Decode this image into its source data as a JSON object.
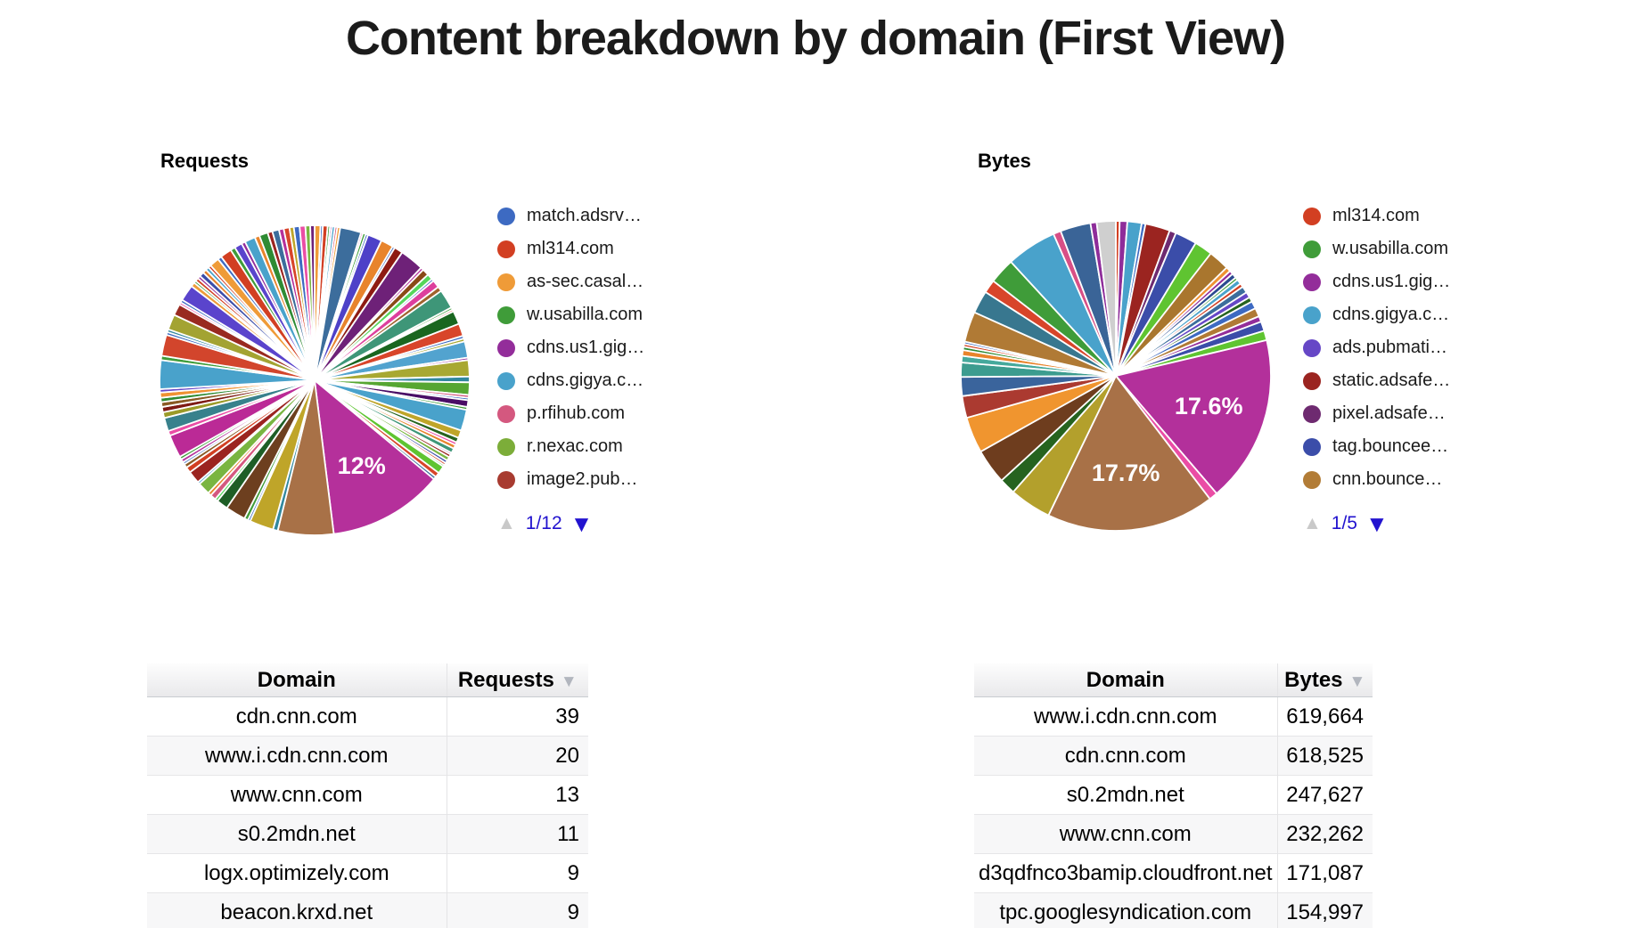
{
  "page_title": "Content breakdown by domain (First View)",
  "icons": {
    "legend_page_up": "▲",
    "legend_page_down": "▼",
    "sort_desc": "▼"
  },
  "colors": {
    "pagination_active": "#2213cf",
    "pagination_disabled": "#c9c9c9",
    "sort_icon": "#b2b6be",
    "label_text": "#ffffff"
  },
  "charts": [
    {
      "title": "Requests",
      "pagination": "1/12",
      "legend": [
        {
          "label": "match.adsrv…",
          "color": "#3d6ac2"
        },
        {
          "label": "ml314.com",
          "color": "#d23f22"
        },
        {
          "label": "as-sec.casal…",
          "color": "#ef9b38"
        },
        {
          "label": "w.usabilla.com",
          "color": "#3f9c39"
        },
        {
          "label": "cdns.us1.gig…",
          "color": "#932d9a"
        },
        {
          "label": "cdns.gigya.c…",
          "color": "#49a2cb"
        },
        {
          "label": "p.rfihub.com",
          "color": "#d4587f"
        },
        {
          "label": "r.nexac.com",
          "color": "#7cad39"
        },
        {
          "label": "image2.pub…",
          "color": "#a83b30"
        }
      ]
    },
    {
      "title": "Bytes",
      "pagination": "1/5",
      "legend": [
        {
          "label": "ml314.com",
          "color": "#d23f22"
        },
        {
          "label": "w.usabilla.com",
          "color": "#3f9c39"
        },
        {
          "label": "cdns.us1.gig…",
          "color": "#932d9a"
        },
        {
          "label": "cdns.gigya.c…",
          "color": "#49a2cb"
        },
        {
          "label": "ads.pubmati…",
          "color": "#6647c6"
        },
        {
          "label": "static.adsafe…",
          "color": "#9b2420"
        },
        {
          "label": "pixel.adsafe…",
          "color": "#6e2a70"
        },
        {
          "label": "tag.bouncee…",
          "color": "#3b4da9"
        },
        {
          "label": "cnn.bounce…",
          "color": "#b27c36"
        }
      ]
    }
  ],
  "chart_data": [
    {
      "type": "pie",
      "name": "requests_by_domain",
      "title": "Requests",
      "value_unit": "percent_of_total_requests",
      "data_labels_shown": [
        "12%"
      ],
      "legend_position": "right",
      "slices": [
        [
          0.6,
          "#ef9b38"
        ],
        [
          0.25,
          "#3d6ac2"
        ],
        [
          0.5,
          "#d23f22"
        ],
        [
          0.25,
          "#3f9c39"
        ],
        [
          0.2,
          "#932d9a"
        ],
        [
          0.3,
          "#49a2cb"
        ],
        [
          0.25,
          "#d4587f"
        ],
        [
          0.3,
          "#ef9b38"
        ],
        [
          2.2,
          "#3c6d9c"
        ],
        [
          0.2,
          "#ea4da5"
        ],
        [
          0.3,
          "#3f9c39"
        ],
        [
          0.25,
          "#3d6ac2"
        ],
        [
          1.5,
          "#4e41c8"
        ],
        [
          1.3,
          "#e8842c"
        ],
        [
          0.25,
          "#3d6ac2"
        ],
        [
          0.9,
          "#8e1b13"
        ],
        [
          2.5,
          "#6e2178"
        ],
        [
          0.3,
          "#b5309b"
        ],
        [
          0.7,
          "#8a4a17"
        ],
        [
          0.6,
          "#55d65a"
        ],
        [
          0.25,
          "#3d6ac2"
        ],
        [
          0.8,
          "#dd3f9d"
        ],
        [
          0.5,
          "#a0622d"
        ],
        [
          2.0,
          "#3e9678"
        ],
        [
          0.25,
          "#3f9c39"
        ],
        [
          0.2,
          "#d23f22"
        ],
        [
          1.4,
          "#1a6620"
        ],
        [
          1.3,
          "#d8452a"
        ],
        [
          0.3,
          "#3d6ac2"
        ],
        [
          0.3,
          "#a8a832"
        ],
        [
          1.7,
          "#52a3cf"
        ],
        [
          0.25,
          "#932d9a"
        ],
        [
          1.7,
          "#a8a832"
        ],
        [
          0.6,
          "#31889e"
        ],
        [
          1.3,
          "#56a632"
        ],
        [
          0.3,
          "#d4587f"
        ],
        [
          0.25,
          "#3d6ac2"
        ],
        [
          0.7,
          "#4a0e66"
        ],
        [
          0.3,
          "#3f9c39"
        ],
        [
          2.2,
          "#49a2cb"
        ],
        [
          0.8,
          "#bfa529"
        ],
        [
          0.5,
          "#26631f"
        ],
        [
          0.3,
          "#ea4da5"
        ],
        [
          0.4,
          "#e8842c"
        ],
        [
          0.5,
          "#3e9678"
        ],
        [
          0.2,
          "#932d9a"
        ],
        [
          0.3,
          "#9b2420"
        ],
        [
          0.4,
          "#79b541"
        ],
        [
          0.3,
          "#3b4da9"
        ],
        [
          0.25,
          "#d23f22"
        ],
        [
          0.2,
          "#109618"
        ],
        [
          0.8,
          "#5fc431"
        ],
        [
          0.5,
          "#d8452a"
        ],
        [
          0.3,
          "#3c6d9c"
        ],
        [
          12,
          "#b5309b",
          "12%"
        ],
        [
          5.8,
          "#a87147"
        ],
        [
          0.5,
          "#31889e"
        ],
        [
          2.5,
          "#bfa529"
        ],
        [
          0.25,
          "#3d6ac2"
        ],
        [
          0.4,
          "#3f9c39"
        ],
        [
          2.1,
          "#6d3f1f"
        ],
        [
          1.2,
          "#1e5e26"
        ],
        [
          0.3,
          "#55d65a"
        ],
        [
          0.6,
          "#d4587f"
        ],
        [
          0.35,
          "#e8842c"
        ],
        [
          1.3,
          "#79b541"
        ],
        [
          0.25,
          "#49a2cb"
        ],
        [
          1.3,
          "#9b2420"
        ],
        [
          0.6,
          "#d23f22"
        ],
        [
          0.4,
          "#8a5a24"
        ],
        [
          0.25,
          "#3d6ac2"
        ],
        [
          0.35,
          "#b5309b"
        ],
        [
          0.3,
          "#3f9c39"
        ],
        [
          2.4,
          "#bb2a96"
        ],
        [
          0.5,
          "#ea4da5"
        ],
        [
          1.4,
          "#38818c"
        ],
        [
          0.6,
          "#9b9b28"
        ],
        [
          0.55,
          "#7e1a14"
        ],
        [
          0.5,
          "#8a5a24"
        ],
        [
          0.45,
          "#2f8b33"
        ],
        [
          0.55,
          "#ef9232"
        ],
        [
          0.35,
          "#6647c6"
        ],
        [
          3.0,
          "#49a2cb"
        ],
        [
          0.45,
          "#3f9c39"
        ],
        [
          2.2,
          "#d2452c"
        ],
        [
          0.3,
          "#3d6ac2"
        ],
        [
          0.3,
          "#31889e"
        ],
        [
          1.6,
          "#a3a332"
        ],
        [
          1.2,
          "#992a20"
        ],
        [
          0.25,
          "#ea4da5"
        ],
        [
          0.3,
          "#3d6ac2"
        ],
        [
          1.7,
          "#5a44cc"
        ],
        [
          0.45,
          "#ef9b38"
        ],
        [
          0.25,
          "#3f9c39"
        ],
        [
          0.35,
          "#d23f22"
        ],
        [
          0.3,
          "#932d9a"
        ],
        [
          0.5,
          "#3b4da9"
        ],
        [
          0.4,
          "#e8842c"
        ],
        [
          0.35,
          "#49a2cb"
        ],
        [
          0.3,
          "#d23f22"
        ],
        [
          1.0,
          "#ef9b38"
        ],
        [
          0.4,
          "#3d6ac2"
        ],
        [
          1.2,
          "#d23f22"
        ],
        [
          0.5,
          "#3f9c39"
        ],
        [
          0.8,
          "#5a44cc"
        ],
        [
          0.4,
          "#932d9a"
        ],
        [
          1.1,
          "#49a2cb"
        ],
        [
          0.5,
          "#e8842c"
        ],
        [
          0.9,
          "#2f8b33"
        ],
        [
          0.5,
          "#9b2420"
        ],
        [
          0.7,
          "#3c6d9c"
        ],
        [
          0.5,
          "#b5309b"
        ],
        [
          0.6,
          "#d8452a"
        ],
        [
          0.45,
          "#bfa529"
        ],
        [
          0.6,
          "#3d6ac2"
        ],
        [
          0.6,
          "#ea4da5"
        ],
        [
          0.5,
          "#79b541"
        ],
        [
          0.45,
          "#6e2178"
        ]
      ]
    },
    {
      "type": "pie",
      "name": "bytes_by_domain",
      "title": "Bytes",
      "value_unit": "percent_of_total_bytes",
      "data_labels_shown": [
        "17.6%",
        "17.7%"
      ],
      "legend_position": "right",
      "slices": [
        [
          0.4,
          "#d23f22"
        ],
        [
          0.8,
          "#8e2d9a"
        ],
        [
          1.5,
          "#49a2cb"
        ],
        [
          0.4,
          "#3d6ac2"
        ],
        [
          2.6,
          "#9b2420"
        ],
        [
          0.7,
          "#6e2a70"
        ],
        [
          2.3,
          "#3b4da9"
        ],
        [
          1.9,
          "#5fc431"
        ],
        [
          2.2,
          "#a9762e"
        ],
        [
          0.5,
          "#ef9232"
        ],
        [
          0.4,
          "#932d9a"
        ],
        [
          0.5,
          "#2a4a8f"
        ],
        [
          0.3,
          "#3f9c39"
        ],
        [
          0.5,
          "#49a2cb"
        ],
        [
          0.4,
          "#d23f22"
        ],
        [
          0.7,
          "#3c6d9c"
        ],
        [
          0.6,
          "#6647c6"
        ],
        [
          0.5,
          "#26631f"
        ],
        [
          0.8,
          "#3d6ac2"
        ],
        [
          0.9,
          "#b07a35"
        ],
        [
          0.6,
          "#932d9a"
        ],
        [
          1.0,
          "#3b4da9"
        ],
        [
          1.0,
          "#5fc431"
        ],
        [
          17.6,
          "#b3309b",
          "17.6%"
        ],
        [
          0.9,
          "#ea4da5"
        ],
        [
          17.7,
          "#a87147",
          "17.7%"
        ],
        [
          4.4,
          "#b3a02c"
        ],
        [
          1.7,
          "#26631f"
        ],
        [
          3.7,
          "#6e3d1e"
        ],
        [
          3.8,
          "#f0952f"
        ],
        [
          2.3,
          "#ab3a30"
        ],
        [
          2.0,
          "#3a649c"
        ],
        [
          1.5,
          "#3c9c8f"
        ],
        [
          0.7,
          "#45a99c"
        ],
        [
          0.6,
          "#e8842c"
        ],
        [
          0.35,
          "#2f8b33"
        ],
        [
          0.3,
          "#d23f22"
        ],
        [
          0.25,
          "#3d6ac2"
        ],
        [
          3.2,
          "#b07a35"
        ],
        [
          2.4,
          "#38778f"
        ],
        [
          1.4,
          "#d8452a"
        ],
        [
          2.7,
          "#3f9c39"
        ],
        [
          5.3,
          "#49a2cb"
        ],
        [
          0.8,
          "#d84f86"
        ],
        [
          3.2,
          "#3a6497"
        ],
        [
          0.65,
          "#8e2d9a"
        ],
        [
          2.0,
          "#cfcfcf"
        ]
      ]
    },
    {
      "type": "table",
      "name": "requests_table",
      "columns": [
        "Domain",
        "Requests"
      ],
      "sorted_by": "Requests",
      "sort_direction": "desc",
      "rows": [
        [
          "cdn.cnn.com",
          "39"
        ],
        [
          "www.i.cdn.cnn.com",
          "20"
        ],
        [
          "www.cnn.com",
          "13"
        ],
        [
          "s0.2mdn.net",
          "11"
        ],
        [
          "logx.optimizely.com",
          "9"
        ],
        [
          "beacon.krxd.net",
          "9"
        ]
      ]
    },
    {
      "type": "table",
      "name": "bytes_table",
      "columns": [
        "Domain",
        "Bytes"
      ],
      "sorted_by": "Bytes",
      "sort_direction": "desc",
      "rows": [
        [
          "www.i.cdn.cnn.com",
          "619,664"
        ],
        [
          "cdn.cnn.com",
          "618,525"
        ],
        [
          "s0.2mdn.net",
          "247,627"
        ],
        [
          "www.cnn.com",
          "232,262"
        ],
        [
          "d3qdfnco3bamip.cloudfront.net",
          "171,087"
        ],
        [
          "tpc.googlesyndication.com",
          "154,997"
        ]
      ]
    }
  ]
}
